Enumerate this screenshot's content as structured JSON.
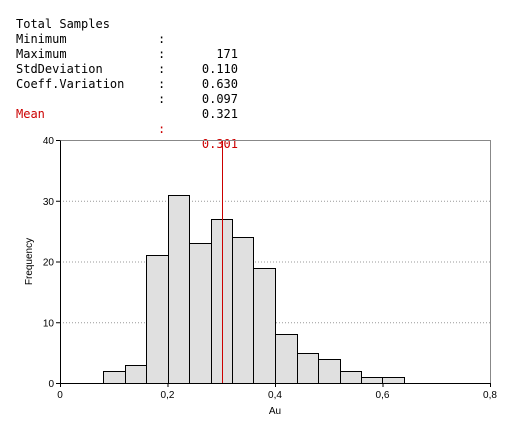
{
  "stats": [
    {
      "label": "Total Samples",
      "value": "171"
    },
    {
      "label": "Minimum",
      "value": "0.110"
    },
    {
      "label": "Maximum",
      "value": "0.630"
    },
    {
      "label": "StdDeviation",
      "value": "0.097"
    },
    {
      "label": "Coeff.Variation",
      "value": "0.321"
    }
  ],
  "mean": {
    "label": "Mean",
    "value": "0.301"
  },
  "colon": ":",
  "colors": {
    "mean": "#cc0000",
    "bar_fill": "#e0e0e0",
    "bar_stroke": "#000000",
    "grid": "#999999"
  },
  "chart_data": {
    "type": "bar",
    "title": "",
    "xlabel": "Au",
    "ylabel": "Frequency",
    "xlim": [
      0,
      0.8
    ],
    "ylim": [
      0,
      40
    ],
    "x_ticks": [
      "0",
      "0,2",
      "0,4",
      "0,6",
      "0,8"
    ],
    "y_ticks": [
      "0",
      "10",
      "20",
      "30",
      "40"
    ],
    "grid": true,
    "bins": [
      {
        "from": 0.08,
        "to": 0.12,
        "count": 2
      },
      {
        "from": 0.12,
        "to": 0.16,
        "count": 3
      },
      {
        "from": 0.16,
        "to": 0.2,
        "count": 21
      },
      {
        "from": 0.2,
        "to": 0.24,
        "count": 31
      },
      {
        "from": 0.24,
        "to": 0.28,
        "count": 23
      },
      {
        "from": 0.28,
        "to": 0.32,
        "count": 27
      },
      {
        "from": 0.32,
        "to": 0.36,
        "count": 24
      },
      {
        "from": 0.36,
        "to": 0.4,
        "count": 19
      },
      {
        "from": 0.4,
        "to": 0.44,
        "count": 8
      },
      {
        "from": 0.44,
        "to": 0.48,
        "count": 5
      },
      {
        "from": 0.48,
        "to": 0.52,
        "count": 4
      },
      {
        "from": 0.52,
        "to": 0.56,
        "count": 2
      },
      {
        "from": 0.56,
        "to": 0.6,
        "count": 1
      },
      {
        "from": 0.6,
        "to": 0.64,
        "count": 1
      }
    ],
    "mean_line": 0.301
  }
}
